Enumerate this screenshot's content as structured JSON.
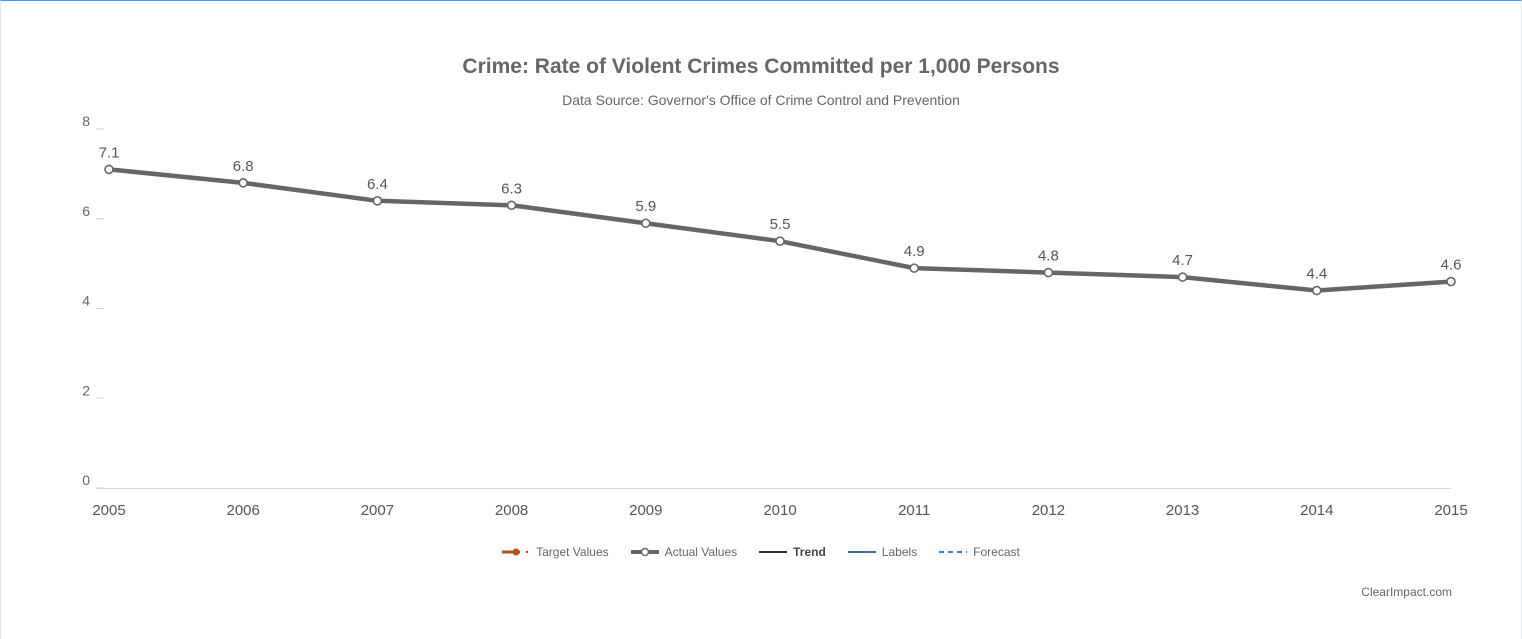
{
  "chart_data": {
    "type": "line",
    "title": "Crime: Rate of Violent Crimes Committed per 1,000 Persons",
    "subtitle": "Data Source: Governor's Office of Crime Control and Prevention",
    "x": [
      "2005",
      "2006",
      "2007",
      "2008",
      "2009",
      "2010",
      "2011",
      "2012",
      "2013",
      "2014",
      "2015"
    ],
    "series": [
      {
        "name": "Actual Values",
        "values": [
          7.1,
          6.8,
          6.4,
          6.3,
          5.9,
          5.5,
          4.9,
          4.8,
          4.7,
          4.4,
          4.6
        ],
        "labels": [
          "7.1",
          "6.8",
          "6.4",
          "6.3",
          "5.9",
          "5.5",
          "4.9",
          "4.8",
          "4.7",
          "4.4",
          "4.6"
        ],
        "color": "#666666"
      }
    ],
    "ylim": [
      0,
      8
    ],
    "yticks": [
      "0",
      "2",
      "4",
      "6",
      "8"
    ],
    "xlabel": "",
    "ylabel": "",
    "grid": false,
    "legend_position": "bottom-center",
    "legend": [
      {
        "label": "Target Values",
        "style": "marker-dot",
        "color": "#b5541c"
      },
      {
        "label": "Actual Values",
        "style": "marker-circle",
        "color": "#666666"
      },
      {
        "label": "Trend",
        "style": "solid",
        "color": "#333333"
      },
      {
        "label": "Labels",
        "style": "solid",
        "color": "#3a6ea5"
      },
      {
        "label": "Forecast",
        "style": "dashed",
        "color": "#3a7fc1"
      }
    ],
    "credit": "ClearImpact.com"
  }
}
